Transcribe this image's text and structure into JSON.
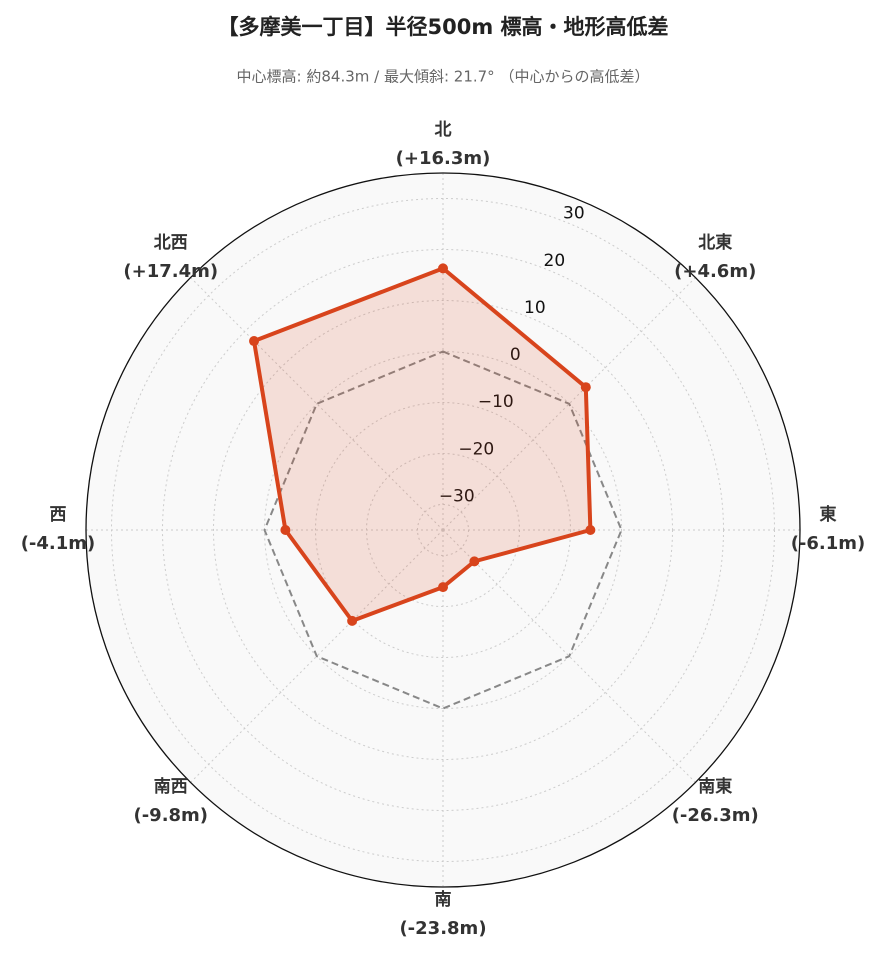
{
  "chart_data": {
    "type": "radar",
    "title": "【多摩美一丁目】半径500m 標高・地形高低差",
    "subtitle": "中心標高: 約84.3m / 最大傾斜: 21.7° （中心からの高低差）",
    "categories": [
      "北",
      "北東",
      "東",
      "南東",
      "南",
      "南西",
      "西",
      "北西"
    ],
    "values": [
      16.3,
      4.6,
      -6.1,
      -26.3,
      -23.8,
      -9.8,
      -4.1,
      17.4
    ],
    "value_labels": [
      "(+16.3m)",
      "(+4.6m)",
      "(-6.1m)",
      "(-26.3m)",
      "(-23.8m)",
      "(-9.8m)",
      "(-4.1m)",
      "(+17.4m)"
    ],
    "color": "#d8441c",
    "ylim": [
      -35,
      35
    ],
    "yticks": [
      {
        "value": -30,
        "label": "−30"
      },
      {
        "value": -20,
        "label": "−20"
      },
      {
        "value": -10,
        "label": "−10"
      },
      0,
      10,
      20,
      30
    ],
    "grid": true
  }
}
